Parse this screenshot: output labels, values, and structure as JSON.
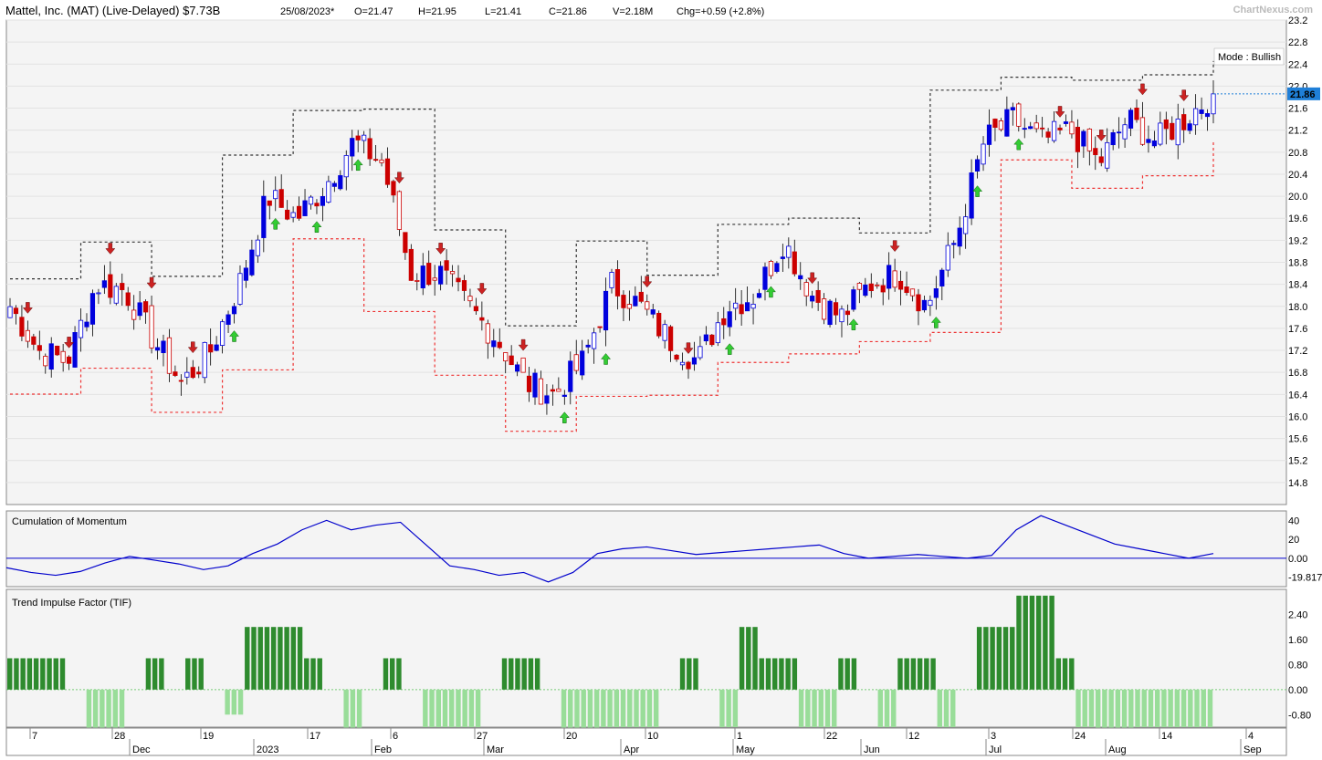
{
  "header": {
    "title": "Mattel, Inc. (MAT) (Live-Delayed) $7.73B",
    "date": "25/08/2023*",
    "open": "O=21.47",
    "high": "H=21.95",
    "low": "L=21.41",
    "close": "C=21.86",
    "volume": "V=2.18M",
    "change": "Chg=+0.59 (+2.8%)",
    "brand": "ChartNexus.com"
  },
  "colors": {
    "up_candle": "#0000dd",
    "down_candle": "#cc0000",
    "stop_upper": "#333333",
    "stop_lower": "#ee3333",
    "momentum_line": "#0000cc",
    "tif_positive": "#2e8b2e",
    "tif_negative": "#99dd99",
    "last_price_label": "#1f7fd8",
    "arrow_up": "#33cc33",
    "arrow_down": "#cc2222"
  },
  "chart_data": [
    {
      "type": "candlestick",
      "mode_label": "Mode : Bullish",
      "last_price": "21.86",
      "ylim": [
        14.4,
        23.2
      ],
      "y_ticks": [
        "23.2",
        "22.8",
        "22.4",
        "22.0",
        "21.6",
        "21.2",
        "20.8",
        "20.4",
        "20.0",
        "19.6",
        "19.2",
        "18.8",
        "18.4",
        "18.0",
        "17.6",
        "17.2",
        "16.8",
        "16.4",
        "16.0",
        "15.6",
        "15.2",
        "14.8"
      ],
      "x_ticks": [
        "7",
        "28",
        "19",
        "17",
        "6",
        "27",
        "20",
        "10",
        "1",
        "22",
        "12",
        "3",
        "24",
        "14",
        "4"
      ],
      "x_month_labels": [
        "Dec",
        "2023",
        "Feb",
        "Mar",
        "Apr",
        "May",
        "Jun",
        "Jul",
        "Aug",
        "Sep"
      ],
      "approx_close_path": [
        {
          "date": "2022-11-07",
          "close": 18.0
        },
        {
          "date": "2022-11-14",
          "close": 17.2
        },
        {
          "date": "2022-11-21",
          "close": 17.0
        },
        {
          "date": "2022-11-28",
          "close": 18.4
        },
        {
          "date": "2022-12-05",
          "close": 18.3
        },
        {
          "date": "2022-12-12",
          "close": 17.4
        },
        {
          "date": "2022-12-19",
          "close": 16.6
        },
        {
          "date": "2022-12-26",
          "close": 17.2
        },
        {
          "date": "2023-01-03",
          "close": 18.4
        },
        {
          "date": "2023-01-10",
          "close": 20.0
        },
        {
          "date": "2023-01-17",
          "close": 19.6
        },
        {
          "date": "2023-01-24",
          "close": 20.2
        },
        {
          "date": "2023-01-31",
          "close": 21.0
        },
        {
          "date": "2023-02-06",
          "close": 20.6
        },
        {
          "date": "2023-02-13",
          "close": 18.6
        },
        {
          "date": "2023-02-21",
          "close": 18.6
        },
        {
          "date": "2023-02-27",
          "close": 18.0
        },
        {
          "date": "2023-03-06",
          "close": 17.4
        },
        {
          "date": "2023-03-13",
          "close": 16.6
        },
        {
          "date": "2023-03-20",
          "close": 16.4
        },
        {
          "date": "2023-03-27",
          "close": 17.0
        },
        {
          "date": "2023-04-03",
          "close": 18.4
        },
        {
          "date": "2023-04-10",
          "close": 18.0
        },
        {
          "date": "2023-04-17",
          "close": 17.4
        },
        {
          "date": "2023-04-24",
          "close": 17.0
        },
        {
          "date": "2023-05-01",
          "close": 18.0
        },
        {
          "date": "2023-05-08",
          "close": 18.2
        },
        {
          "date": "2023-05-15",
          "close": 19.2
        },
        {
          "date": "2023-05-22",
          "close": 18.2
        },
        {
          "date": "2023-05-29",
          "close": 17.8
        },
        {
          "date": "2023-06-05",
          "close": 18.4
        },
        {
          "date": "2023-06-12",
          "close": 18.6
        },
        {
          "date": "2023-06-19",
          "close": 18.0
        },
        {
          "date": "2023-06-26",
          "close": 19.2
        },
        {
          "date": "2023-07-03",
          "close": 21.0
        },
        {
          "date": "2023-07-10",
          "close": 21.4
        },
        {
          "date": "2023-07-17",
          "close": 21.0
        },
        {
          "date": "2023-07-24",
          "close": 21.2
        },
        {
          "date": "2023-07-31",
          "close": 20.6
        },
        {
          "date": "2023-08-07",
          "close": 21.4
        },
        {
          "date": "2023-08-14",
          "close": 21.0
        },
        {
          "date": "2023-08-21",
          "close": 21.4
        },
        {
          "date": "2023-08-25",
          "close": 21.86
        }
      ]
    },
    {
      "type": "line",
      "title": "Cumulation of Momentum",
      "ylim": [
        -30,
        50
      ],
      "y_ticks": [
        "40",
        "20",
        "0.00",
        "-19.817"
      ],
      "approx_values": [
        -10,
        -15,
        -18,
        -14,
        -5,
        2,
        -2,
        -6,
        -12,
        -8,
        5,
        15,
        30,
        40,
        30,
        35,
        38,
        15,
        -8,
        -12,
        -18,
        -15,
        -25,
        -15,
        5,
        10,
        12,
        8,
        4,
        6,
        8,
        10,
        12,
        14,
        5,
        0,
        2,
        4,
        2,
        0,
        3,
        30,
        45,
        35,
        25,
        15,
        10,
        5,
        0,
        5
      ]
    },
    {
      "type": "bar",
      "title": "Trend Impulse Factor (TIF)",
      "ylim": [
        -1.2,
        3.2
      ],
      "y_ticks": [
        "2.40",
        "1.60",
        "0.80",
        "0.00",
        "-0.80"
      ],
      "approx_values": [
        1,
        1,
        1,
        0,
        -1.6,
        -1.6,
        0,
        1,
        0,
        1,
        0,
        -0.8,
        2,
        2,
        2,
        1,
        0,
        -1.6,
        0,
        1,
        0,
        -1.2,
        -1.2,
        -1.2,
        0,
        1,
        1,
        0,
        -1.6,
        -1.6,
        -1.2,
        -1.2,
        -1.2,
        0,
        1,
        0,
        -1.2,
        2,
        1,
        1,
        -1.2,
        -1.2,
        1,
        0,
        -1.2,
        1,
        1,
        -1.2,
        0,
        2,
        2,
        3,
        3,
        1,
        -1.2,
        -1.6,
        -1.6,
        -1.2,
        -1.2,
        -1.2,
        -1.2
      ]
    }
  ]
}
